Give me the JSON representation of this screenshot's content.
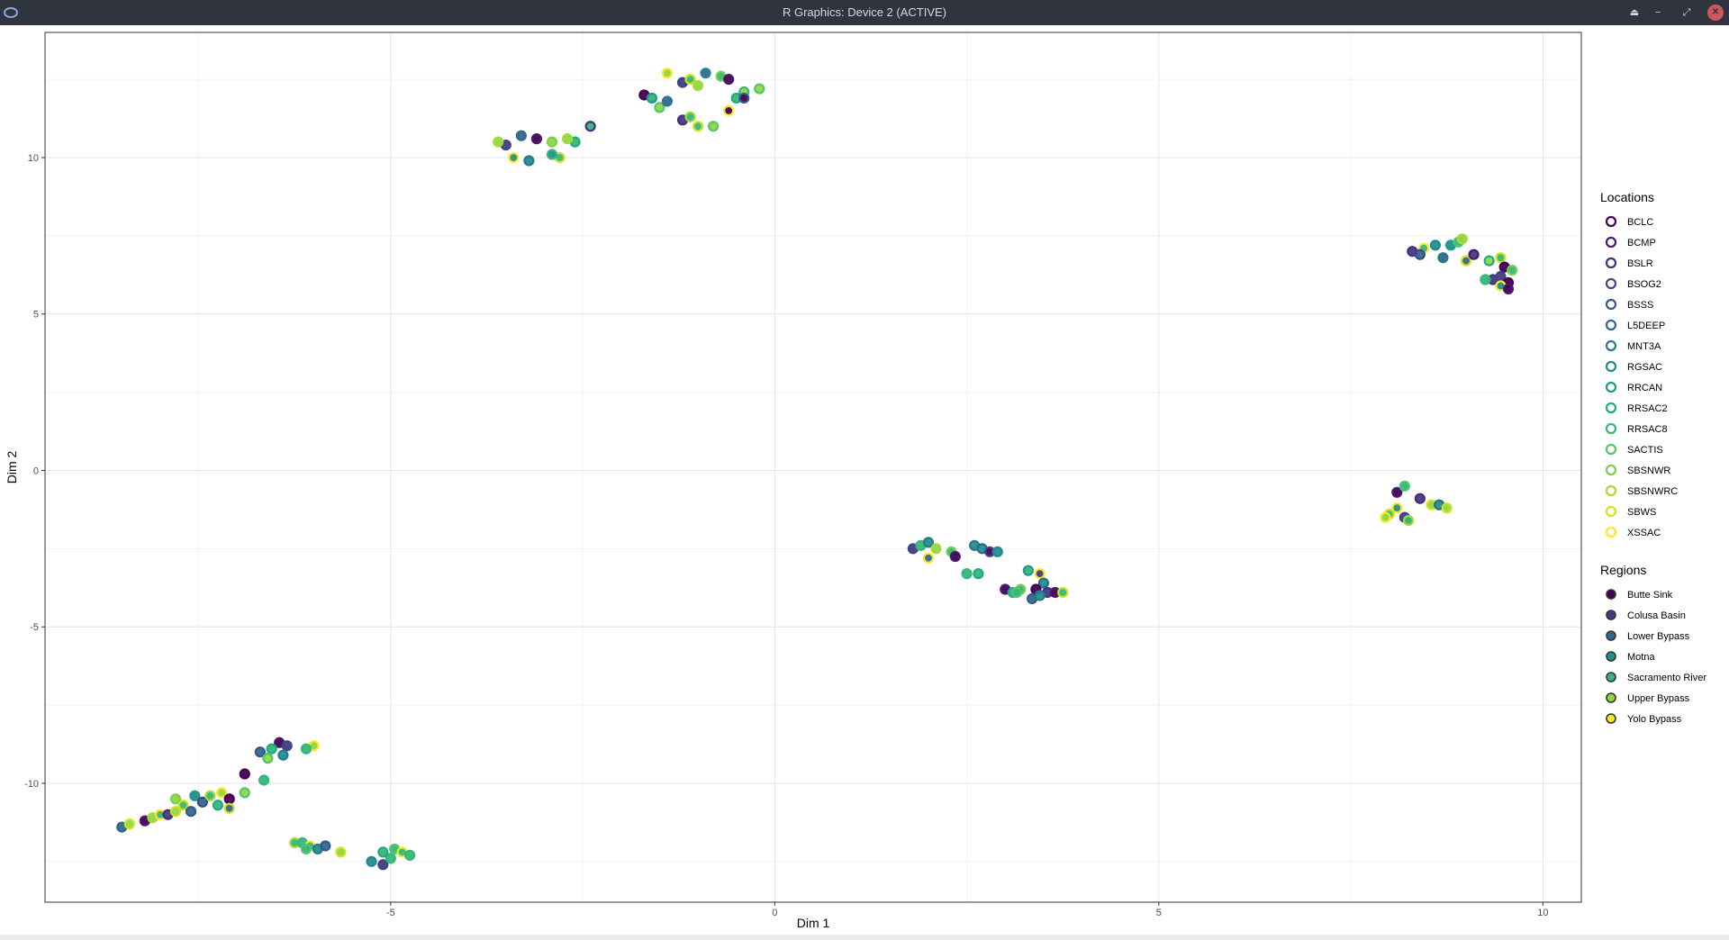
{
  "window": {
    "title": "R Graphics: Device 2 (ACTIVE)",
    "icons": [
      "r-app-icon",
      "eject-icon",
      "minimize-icon",
      "maximize-icon",
      "close-icon"
    ]
  },
  "chart_data": {
    "type": "scatter",
    "xlabel": "Dim 1",
    "ylabel": "Dim 2",
    "xlim": [
      -9.5,
      10.5
    ],
    "ylim": [
      -13.8,
      14.0
    ],
    "xticks": [
      -5,
      0,
      5,
      10
    ],
    "yticks": [
      -10,
      -5,
      0,
      5,
      10
    ],
    "xtick_labels": [
      "-5",
      "0",
      "5",
      "10"
    ],
    "ytick_labels": [
      "-10",
      "-5",
      "0",
      "5",
      "10"
    ],
    "grid": true,
    "legend_position": "right",
    "legends": [
      {
        "title": "Locations",
        "aesthetic": "outline color",
        "entries": [
          {
            "label": "BCLC",
            "color": "#440154"
          },
          {
            "label": "BCMP",
            "color": "#481A6C"
          },
          {
            "label": "BSLR",
            "color": "#472F7D"
          },
          {
            "label": "BSOG2",
            "color": "#414487"
          },
          {
            "label": "BSSS",
            "color": "#39568C"
          },
          {
            "label": "L5DEEP",
            "color": "#31688E"
          },
          {
            "label": "MNT3A",
            "color": "#2A788E"
          },
          {
            "label": "RGSAC",
            "color": "#23888E"
          },
          {
            "label": "RRCAN",
            "color": "#1F988B"
          },
          {
            "label": "RRSAC2",
            "color": "#22A884"
          },
          {
            "label": "RRSAC8",
            "color": "#35B779"
          },
          {
            "label": "SACTIS",
            "color": "#54C568"
          },
          {
            "label": "SBSNWR",
            "color": "#7AD151"
          },
          {
            "label": "SBSNWRC",
            "color": "#A5DB36"
          },
          {
            "label": "SBWS",
            "color": "#D2E21B"
          },
          {
            "label": "XSSAC",
            "color": "#FDE725"
          }
        ]
      },
      {
        "title": "Regions",
        "aesthetic": "fill color",
        "entries": [
          {
            "label": "Butte Sink",
            "color": "#440154"
          },
          {
            "label": "Colusa Basin",
            "color": "#443A83"
          },
          {
            "label": "Lower Bypass",
            "color": "#31688E"
          },
          {
            "label": "Motna",
            "color": "#21908C"
          },
          {
            "label": "Sacramento River",
            "color": "#35B779"
          },
          {
            "label": "Upper Bypass",
            "color": "#8FD744"
          },
          {
            "label": "Yolo Bypass",
            "color": "#FDE725"
          }
        ]
      }
    ],
    "points": [
      {
        "x": -3.5,
        "y": 10.4,
        "loc": 3,
        "reg": 1
      },
      {
        "x": -3.3,
        "y": 10.7,
        "loc": 5,
        "reg": 2
      },
      {
        "x": -3.1,
        "y": 10.6,
        "loc": 1,
        "reg": 0
      },
      {
        "x": -3.4,
        "y": 10.0,
        "loc": 15,
        "reg": 3
      },
      {
        "x": -3.2,
        "y": 9.9,
        "loc": 6,
        "reg": 3
      },
      {
        "x": -2.9,
        "y": 10.5,
        "loc": 12,
        "reg": 5
      },
      {
        "x": -2.8,
        "y": 10.0,
        "loc": 14,
        "reg": 4
      },
      {
        "x": -2.6,
        "y": 10.5,
        "loc": 9,
        "reg": 4
      },
      {
        "x": -2.4,
        "y": 11.0,
        "loc": 2,
        "reg": 4
      },
      {
        "x": -2.7,
        "y": 10.6,
        "loc": 13,
        "reg": 5
      },
      {
        "x": -3.6,
        "y": 10.5,
        "loc": 13,
        "reg": 5
      },
      {
        "x": -2.9,
        "y": 10.1,
        "loc": 10,
        "reg": 3
      },
      {
        "x": -1.7,
        "y": 12.0,
        "loc": 0,
        "reg": 0
      },
      {
        "x": -1.6,
        "y": 11.9,
        "loc": 8,
        "reg": 4
      },
      {
        "x": -1.5,
        "y": 11.6,
        "loc": 11,
        "reg": 5
      },
      {
        "x": -1.4,
        "y": 11.8,
        "loc": 6,
        "reg": 2
      },
      {
        "x": -1.2,
        "y": 12.4,
        "loc": 3,
        "reg": 1
      },
      {
        "x": -1.4,
        "y": 12.7,
        "loc": 15,
        "reg": 5
      },
      {
        "x": -1.1,
        "y": 12.5,
        "loc": 14,
        "reg": 4
      },
      {
        "x": -1.0,
        "y": 12.3,
        "loc": 13,
        "reg": 5
      },
      {
        "x": -0.9,
        "y": 12.7,
        "loc": 7,
        "reg": 2
      },
      {
        "x": -0.7,
        "y": 12.6,
        "loc": 12,
        "reg": 4
      },
      {
        "x": -0.6,
        "y": 12.5,
        "loc": 1,
        "reg": 0
      },
      {
        "x": -0.4,
        "y": 12.1,
        "loc": 10,
        "reg": 5
      },
      {
        "x": -0.2,
        "y": 12.2,
        "loc": 11,
        "reg": 5
      },
      {
        "x": -0.5,
        "y": 11.9,
        "loc": 9,
        "reg": 4
      },
      {
        "x": -0.6,
        "y": 11.5,
        "loc": 15,
        "reg": 0
      },
      {
        "x": -1.2,
        "y": 11.2,
        "loc": 2,
        "reg": 1
      },
      {
        "x": -1.0,
        "y": 11.0,
        "loc": 14,
        "reg": 4
      },
      {
        "x": -0.8,
        "y": 11.0,
        "loc": 11,
        "reg": 5
      },
      {
        "x": -1.1,
        "y": 11.3,
        "loc": 13,
        "reg": 4
      },
      {
        "x": -0.4,
        "y": 11.9,
        "loc": 4,
        "reg": 0
      },
      {
        "x": 8.3,
        "y": 7.0,
        "loc": 2,
        "reg": 1
      },
      {
        "x": 8.45,
        "y": 7.1,
        "loc": 15,
        "reg": 4
      },
      {
        "x": 8.6,
        "y": 7.2,
        "loc": 7,
        "reg": 3
      },
      {
        "x": 8.7,
        "y": 6.8,
        "loc": 6,
        "reg": 2
      },
      {
        "x": 8.8,
        "y": 7.2,
        "loc": 8,
        "reg": 3
      },
      {
        "x": 8.9,
        "y": 7.3,
        "loc": 11,
        "reg": 4
      },
      {
        "x": 8.95,
        "y": 7.4,
        "loc": 13,
        "reg": 5
      },
      {
        "x": 9.0,
        "y": 6.7,
        "loc": 14,
        "reg": 2
      },
      {
        "x": 9.1,
        "y": 6.9,
        "loc": 1,
        "reg": 1
      },
      {
        "x": 9.3,
        "y": 6.7,
        "loc": 9,
        "reg": 5
      },
      {
        "x": 9.45,
        "y": 6.8,
        "loc": 14,
        "reg": 4
      },
      {
        "x": 9.5,
        "y": 6.5,
        "loc": 0,
        "reg": 0
      },
      {
        "x": 9.6,
        "y": 6.4,
        "loc": 12,
        "reg": 4
      },
      {
        "x": 9.35,
        "y": 6.1,
        "loc": 2,
        "reg": 1
      },
      {
        "x": 9.45,
        "y": 6.2,
        "loc": 3,
        "reg": 1
      },
      {
        "x": 9.55,
        "y": 6.0,
        "loc": 0,
        "reg": 0
      },
      {
        "x": 9.25,
        "y": 6.1,
        "loc": 10,
        "reg": 4
      },
      {
        "x": 9.45,
        "y": 5.9,
        "loc": 15,
        "reg": 3
      },
      {
        "x": 9.55,
        "y": 5.8,
        "loc": 1,
        "reg": 0
      },
      {
        "x": 8.4,
        "y": 6.9,
        "loc": 3,
        "reg": 2
      },
      {
        "x": 8.1,
        "y": -0.7,
        "loc": 1,
        "reg": 0
      },
      {
        "x": 8.2,
        "y": -0.5,
        "loc": 11,
        "reg": 4
      },
      {
        "x": 8.1,
        "y": -1.2,
        "loc": 15,
        "reg": 3
      },
      {
        "x": 8.0,
        "y": -1.4,
        "loc": 14,
        "reg": 4
      },
      {
        "x": 7.95,
        "y": -1.5,
        "loc": 15,
        "reg": 5
      },
      {
        "x": 8.2,
        "y": -1.5,
        "loc": 3,
        "reg": 1
      },
      {
        "x": 8.25,
        "y": -1.6,
        "loc": 13,
        "reg": 4
      },
      {
        "x": 8.4,
        "y": -0.9,
        "loc": 2,
        "reg": 1
      },
      {
        "x": 8.55,
        "y": -1.1,
        "loc": 14,
        "reg": 5
      },
      {
        "x": 8.65,
        "y": -1.1,
        "loc": 5,
        "reg": 3
      },
      {
        "x": 8.75,
        "y": -1.2,
        "loc": 14,
        "reg": 5
      },
      {
        "x": 1.8,
        "y": -2.5,
        "loc": 3,
        "reg": 1
      },
      {
        "x": 1.9,
        "y": -2.4,
        "loc": 10,
        "reg": 4
      },
      {
        "x": 2.0,
        "y": -2.3,
        "loc": 6,
        "reg": 3
      },
      {
        "x": 2.1,
        "y": -2.5,
        "loc": 13,
        "reg": 5
      },
      {
        "x": 2.0,
        "y": -2.8,
        "loc": 15,
        "reg": 2
      },
      {
        "x": 2.3,
        "y": -2.6,
        "loc": 12,
        "reg": 4
      },
      {
        "x": 2.35,
        "y": -2.75,
        "loc": 1,
        "reg": 0
      },
      {
        "x": 2.5,
        "y": -3.3,
        "loc": 10,
        "reg": 4
      },
      {
        "x": 2.65,
        "y": -3.3,
        "loc": 9,
        "reg": 4
      },
      {
        "x": 2.6,
        "y": -2.4,
        "loc": 6,
        "reg": 3
      },
      {
        "x": 2.7,
        "y": -2.5,
        "loc": 5,
        "reg": 3
      },
      {
        "x": 2.8,
        "y": -2.6,
        "loc": 3,
        "reg": 0
      },
      {
        "x": 2.9,
        "y": -2.6,
        "loc": 7,
        "reg": 3
      },
      {
        "x": 3.0,
        "y": -3.8,
        "loc": 1,
        "reg": 0
      },
      {
        "x": 3.1,
        "y": -3.9,
        "loc": 9,
        "reg": 4
      },
      {
        "x": 3.2,
        "y": -3.8,
        "loc": 12,
        "reg": 4
      },
      {
        "x": 3.3,
        "y": -3.2,
        "loc": 8,
        "reg": 4
      },
      {
        "x": 3.45,
        "y": -3.3,
        "loc": 15,
        "reg": 1
      },
      {
        "x": 3.5,
        "y": -3.6,
        "loc": 5,
        "reg": 3
      },
      {
        "x": 3.4,
        "y": -3.8,
        "loc": 0,
        "reg": 0
      },
      {
        "x": 3.55,
        "y": -3.9,
        "loc": 2,
        "reg": 1
      },
      {
        "x": 3.35,
        "y": -4.1,
        "loc": 4,
        "reg": 2
      },
      {
        "x": 3.45,
        "y": -4.0,
        "loc": 6,
        "reg": 3
      },
      {
        "x": 3.65,
        "y": -3.9,
        "loc": 1,
        "reg": 0
      },
      {
        "x": 3.75,
        "y": -3.9,
        "loc": 14,
        "reg": 4
      },
      {
        "x": 3.15,
        "y": -3.9,
        "loc": 11,
        "reg": 4
      },
      {
        "x": -6.45,
        "y": -8.7,
        "loc": 1,
        "reg": 0
      },
      {
        "x": -6.35,
        "y": -8.8,
        "loc": 3,
        "reg": 1
      },
      {
        "x": -6.55,
        "y": -8.9,
        "loc": 9,
        "reg": 4
      },
      {
        "x": -6.7,
        "y": -9.0,
        "loc": 4,
        "reg": 2
      },
      {
        "x": -6.6,
        "y": -9.2,
        "loc": 11,
        "reg": 5
      },
      {
        "x": -6.4,
        "y": -9.1,
        "loc": 6,
        "reg": 3
      },
      {
        "x": -6.0,
        "y": -8.8,
        "loc": 15,
        "reg": 5
      },
      {
        "x": -6.1,
        "y": -8.9,
        "loc": 10,
        "reg": 4
      },
      {
        "x": -6.9,
        "y": -9.7,
        "loc": 0,
        "reg": 0
      },
      {
        "x": -6.65,
        "y": -9.9,
        "loc": 10,
        "reg": 4
      },
      {
        "x": -7.8,
        "y": -10.5,
        "loc": 12,
        "reg": 5
      },
      {
        "x": -7.7,
        "y": -10.7,
        "loc": 14,
        "reg": 4
      },
      {
        "x": -7.55,
        "y": -10.4,
        "loc": 8,
        "reg": 3
      },
      {
        "x": -7.45,
        "y": -10.6,
        "loc": 3,
        "reg": 2
      },
      {
        "x": -7.35,
        "y": -10.4,
        "loc": 13,
        "reg": 4
      },
      {
        "x": -7.2,
        "y": -10.3,
        "loc": 15,
        "reg": 5
      },
      {
        "x": -7.1,
        "y": -10.5,
        "loc": 0,
        "reg": 0
      },
      {
        "x": -7.25,
        "y": -10.7,
        "loc": 9,
        "reg": 4
      },
      {
        "x": -7.1,
        "y": -10.8,
        "loc": 14,
        "reg": 2
      },
      {
        "x": -7.6,
        "y": -10.9,
        "loc": 4,
        "reg": 2
      },
      {
        "x": -6.9,
        "y": -10.3,
        "loc": 11,
        "reg": 5
      },
      {
        "x": -8.5,
        "y": -11.4,
        "loc": 5,
        "reg": 2
      },
      {
        "x": -8.4,
        "y": -11.3,
        "loc": 14,
        "reg": 5
      },
      {
        "x": -8.2,
        "y": -11.2,
        "loc": 1,
        "reg": 0
      },
      {
        "x": -8.1,
        "y": -11.1,
        "loc": 13,
        "reg": 5
      },
      {
        "x": -8.0,
        "y": -11.0,
        "loc": 15,
        "reg": 4
      },
      {
        "x": -7.9,
        "y": -11.0,
        "loc": 2,
        "reg": 1
      },
      {
        "x": -7.8,
        "y": -10.9,
        "loc": 14,
        "reg": 5
      },
      {
        "x": -6.25,
        "y": -11.9,
        "loc": 13,
        "reg": 4
      },
      {
        "x": -6.15,
        "y": -11.9,
        "loc": 10,
        "reg": 4
      },
      {
        "x": -6.05,
        "y": -12.0,
        "loc": 15,
        "reg": 4
      },
      {
        "x": -5.95,
        "y": -12.1,
        "loc": 6,
        "reg": 3
      },
      {
        "x": -5.85,
        "y": -12.0,
        "loc": 4,
        "reg": 2
      },
      {
        "x": -6.1,
        "y": -12.1,
        "loc": 11,
        "reg": 4
      },
      {
        "x": -5.65,
        "y": -12.2,
        "loc": 14,
        "reg": 5
      },
      {
        "x": -5.25,
        "y": -12.5,
        "loc": 7,
        "reg": 3
      },
      {
        "x": -5.1,
        "y": -12.6,
        "loc": 3,
        "reg": 1
      },
      {
        "x": -5.0,
        "y": -12.4,
        "loc": 10,
        "reg": 4
      },
      {
        "x": -5.1,
        "y": -12.2,
        "loc": 9,
        "reg": 4
      },
      {
        "x": -4.95,
        "y": -12.1,
        "loc": 11,
        "reg": 4
      },
      {
        "x": -4.85,
        "y": -12.2,
        "loc": 15,
        "reg": 4
      },
      {
        "x": -4.75,
        "y": -12.3,
        "loc": 10,
        "reg": 4
      }
    ]
  }
}
